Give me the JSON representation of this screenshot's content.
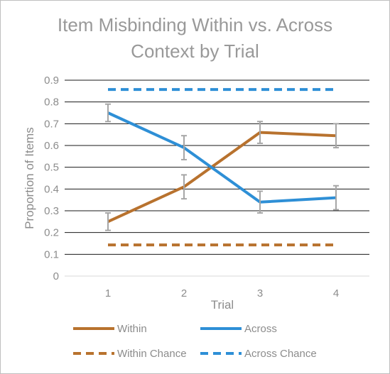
{
  "chart_data": {
    "type": "line",
    "title": "Item Misbinding Within vs. Across Context by Trial",
    "title_lines": [
      "Item Misbinding Within vs. Across",
      "Context by Trial"
    ],
    "xlabel": "Trial",
    "ylabel": "Proportion of Items",
    "categories": [
      "1",
      "2",
      "3",
      "4"
    ],
    "ylim": [
      0,
      0.9
    ],
    "yticks": [
      "0",
      "0.1",
      "0.2",
      "0.3",
      "0.4",
      "0.5",
      "0.6",
      "0.7",
      "0.8",
      "0.9"
    ],
    "grid": true,
    "legend_position": "bottom",
    "series": [
      {
        "name": "Within",
        "values": [
          0.25,
          0.41,
          0.66,
          0.645
        ],
        "error": [
          0.04,
          0.055,
          0.05,
          0.055
        ],
        "color": "#b8722e",
        "style": "solid"
      },
      {
        "name": "Across",
        "values": [
          0.75,
          0.59,
          0.34,
          0.36
        ],
        "error": [
          0.04,
          0.055,
          0.05,
          0.055
        ],
        "color": "#2e8fd6",
        "style": "solid"
      },
      {
        "name": "Within Chance",
        "values": [
          0.143,
          0.143,
          0.143,
          0.143
        ],
        "color": "#b8722e",
        "style": "dashed"
      },
      {
        "name": "Across Chance",
        "values": [
          0.857,
          0.857,
          0.857,
          0.857
        ],
        "color": "#2e8fd6",
        "style": "dashed"
      }
    ],
    "error_bar_color": "#a6a6a6"
  }
}
